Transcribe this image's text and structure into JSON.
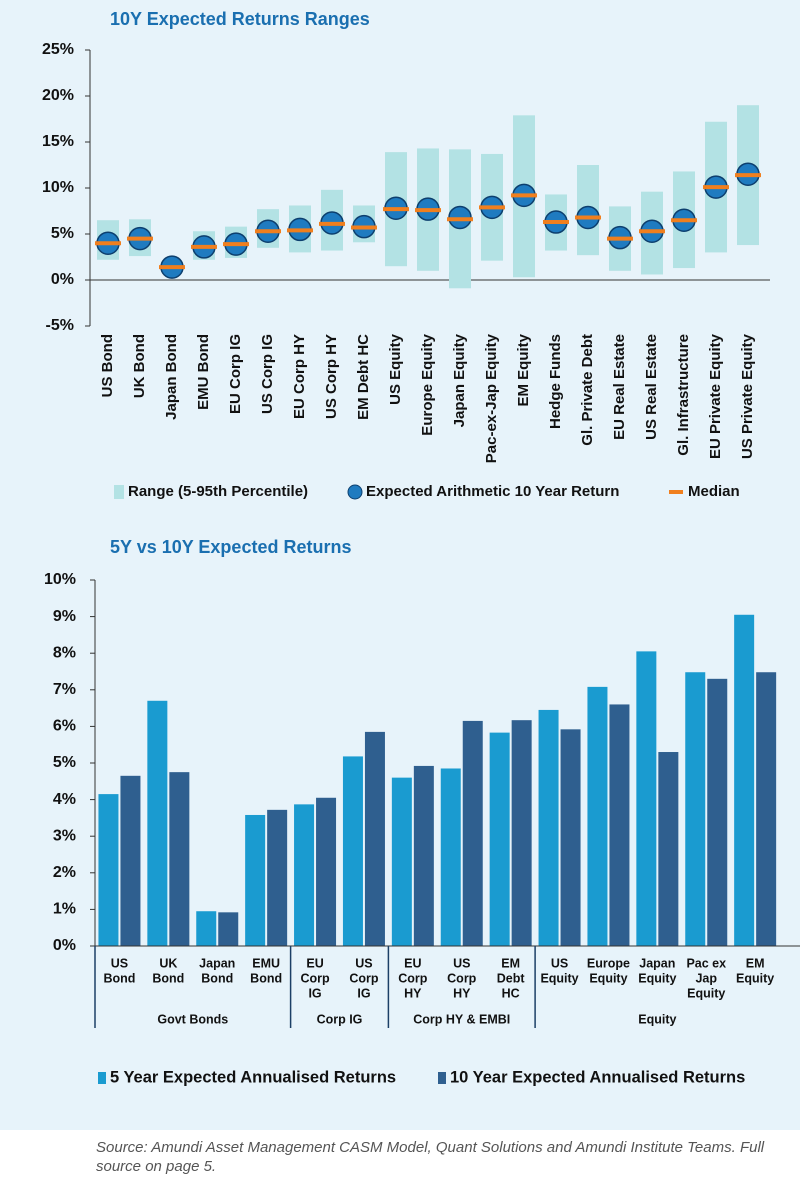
{
  "chart_data": [
    {
      "type": "range",
      "title": "10Y Expected Returns Ranges",
      "categories": [
        "US Bond",
        "UK Bond",
        "Japan Bond",
        "EMU Bond",
        "EU Corp IG",
        "US Corp IG",
        "EU Corp HY",
        "US Corp HY",
        "EM Debt HC",
        "US Equity",
        "Europe Equity",
        "Japan Equity",
        "Pac-ex-Jap Equity",
        "EM Equity",
        "Hedge Funds",
        "Gl. Private Debt",
        "EU Real Estate",
        "US Real Estate",
        "Gl. Infrastructure",
        "EU Private Equity",
        "US Private Equity"
      ],
      "series": [
        {
          "name": "Range (5-95th Percentile)",
          "color": "#b3e2e4",
          "low": [
            2.2,
            2.6,
            0.9,
            2.2,
            2.4,
            3.5,
            3.0,
            3.2,
            4.1,
            1.5,
            1.0,
            -0.9,
            2.1,
            0.3,
            3.2,
            2.7,
            1.0,
            0.6,
            1.3,
            3.0,
            3.8
          ],
          "high": [
            6.5,
            6.6,
            2.0,
            5.3,
            5.8,
            7.7,
            8.1,
            9.8,
            8.1,
            13.9,
            14.3,
            14.2,
            13.7,
            17.9,
            9.3,
            12.5,
            8.0,
            9.6,
            11.8,
            17.2,
            19.0
          ]
        },
        {
          "name": "Expected Arithmetic 10 Year Return",
          "color": "#1f7bc0",
          "values": [
            4.0,
            4.5,
            1.4,
            3.6,
            3.9,
            5.3,
            5.5,
            6.2,
            5.8,
            7.8,
            7.7,
            6.8,
            7.9,
            9.2,
            6.3,
            6.8,
            4.6,
            5.3,
            6.5,
            10.1,
            11.5
          ]
        },
        {
          "name": "Median",
          "color": "#f07f1e",
          "values": [
            4.0,
            4.5,
            1.4,
            3.6,
            3.9,
            5.3,
            5.4,
            6.1,
            5.7,
            7.7,
            7.6,
            6.6,
            7.9,
            9.2,
            6.3,
            6.8,
            4.5,
            5.3,
            6.5,
            10.1,
            11.4
          ]
        }
      ],
      "ylim": [
        -5,
        25
      ],
      "yticks": [
        {
          "value": -5,
          "label": "-5%"
        },
        {
          "value": 0,
          "label": "0%"
        },
        {
          "value": 5,
          "label": "5%"
        },
        {
          "value": 10,
          "label": "10%"
        },
        {
          "value": 15,
          "label": "15%"
        },
        {
          "value": 20,
          "label": "20%"
        },
        {
          "value": 25,
          "label": "25%"
        }
      ]
    },
    {
      "type": "bar",
      "title": "5Y vs 10Y Expected Returns",
      "categories": [
        [
          "US",
          "Bond"
        ],
        [
          "UK",
          "Bond"
        ],
        [
          "Japan",
          "Bond"
        ],
        [
          "EMU",
          "Bond"
        ],
        [
          "EU",
          "Corp",
          "IG"
        ],
        [
          "US",
          "Corp",
          "IG"
        ],
        [
          "EU",
          "Corp",
          "HY"
        ],
        [
          "US",
          "Corp",
          "HY"
        ],
        [
          "EM",
          "Debt",
          "HC"
        ],
        [
          "US",
          "Equity"
        ],
        [
          "Europe",
          "Equity"
        ],
        [
          "Japan",
          "Equity"
        ],
        [
          "Pac ex",
          "Jap",
          "Equity"
        ],
        [
          "EM",
          "Equity"
        ]
      ],
      "groups": [
        "Govt Bonds",
        "Corp IG",
        "Corp HY & EMBI",
        "Equity"
      ],
      "series": [
        {
          "name": "5 Year Expected Annualised Returns",
          "color": "#1a9bd0",
          "values": [
            4.15,
            6.7,
            0.95,
            3.58,
            3.87,
            5.18,
            4.6,
            4.85,
            5.83,
            6.45,
            7.08,
            8.05,
            7.48,
            9.05
          ]
        },
        {
          "name": "10 Year Expected Annualised Returns",
          "color": "#2f5f8f",
          "values": [
            4.65,
            4.75,
            0.92,
            3.72,
            4.05,
            5.85,
            4.92,
            6.15,
            6.17,
            5.92,
            6.6,
            5.3,
            7.3,
            7.48
          ]
        }
      ],
      "ylim": [
        0,
        10
      ],
      "yticks": [
        {
          "value": 0,
          "label": "0%"
        },
        {
          "value": 1,
          "label": "1%"
        },
        {
          "value": 2,
          "label": "2%"
        },
        {
          "value": 3,
          "label": "3%"
        },
        {
          "value": 4,
          "label": "4%"
        },
        {
          "value": 5,
          "label": "5%"
        },
        {
          "value": 6,
          "label": "6%"
        },
        {
          "value": 7,
          "label": "7%"
        },
        {
          "value": 8,
          "label": "8%"
        },
        {
          "value": 9,
          "label": "9%"
        },
        {
          "value": 10,
          "label": "10%"
        }
      ]
    }
  ],
  "source": "Source: Amundi Asset Management CASM Model, Quant Solutions and Amundi Institute Teams. Full source on page 5."
}
